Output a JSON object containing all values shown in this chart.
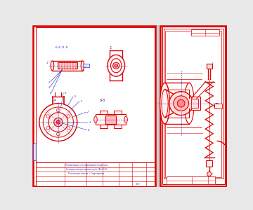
{
  "bg_color": "#e8e8e8",
  "sheet_bg": "#ffffff",
  "line_red": "#dd0000",
  "line_blue": "#3333bb",
  "line_light_red": "#ff6666",
  "gap_color": "#cccccc"
}
